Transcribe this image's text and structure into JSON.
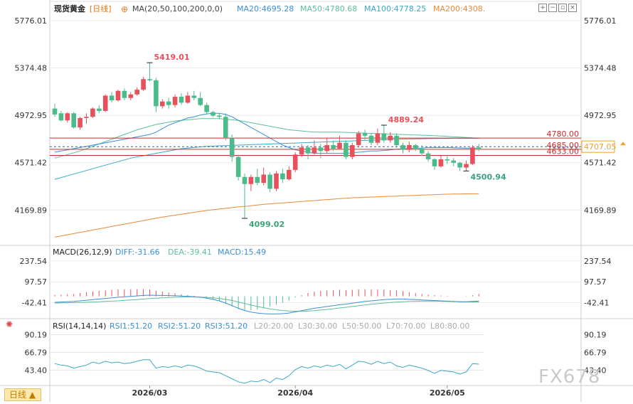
{
  "header": {
    "instrument": "现货黄金",
    "timeframe_tag": "[日线]",
    "ma_label": "MA(20,50,100,200,0,0)",
    "ma20": "MA20:4695.28",
    "ma50": "MA50:4780.68",
    "ma100": "MA100:4778.25",
    "ma200": "MA200:4308.",
    "icons": [
      "plus-circle-icon",
      "grid-plus-icon",
      "grid-minus-icon",
      "window-icon",
      "close-icon"
    ]
  },
  "macd_header": {
    "label": "MACD(26,12,9)",
    "diff": "DIFF:-31.66",
    "dea": "DEA:-39.41",
    "macd": "MACD:15.49"
  },
  "rsi_header": {
    "label": "RSI(14,14,14)",
    "rsi1": "RSI1:51.20",
    "rsi2": "RSI2:51.20",
    "rsi3": "RSI3:51.20",
    "l20": "L20:20.00",
    "l30": "L30:30.00",
    "l50": "L50:50.00",
    "l70": "L70:70.00",
    "l80": "L80:80.00"
  },
  "timeframe_button": "日线 ▲",
  "watermark": "FX678",
  "colors": {
    "up": "#e8505b",
    "down": "#4cbb8a",
    "ma20": "#3a8fd6",
    "ma50": "#5cbf9a",
    "ma100": "#3aa9c9",
    "ma200": "#e88a3a",
    "hline": "#cc2b2b",
    "current": "#f0a030"
  },
  "chart_data": [
    {
      "type": "candlestick",
      "name": "price",
      "y_ticks": [
        "5776.01",
        "5374.48",
        "4972.95",
        "4571.42",
        "4169.89"
      ],
      "ylim": [
        3900,
        5830
      ],
      "x_ticks": [
        "2026/03",
        "2026/04",
        "2026/05"
      ],
      "candles": [
        [
          5030,
          4980,
          5070,
          4960
        ],
        [
          4990,
          4930,
          5010,
          4920
        ],
        [
          4930,
          4990,
          5000,
          4910
        ],
        [
          4990,
          4870,
          5000,
          4860
        ],
        [
          4870,
          4950,
          4960,
          4850
        ],
        [
          4950,
          4960,
          4990,
          4900
        ],
        [
          4960,
          5030,
          5040,
          4950
        ],
        [
          5030,
          5010,
          5060,
          4990
        ],
        [
          5010,
          5140,
          5150,
          5000
        ],
        [
          5140,
          5100,
          5170,
          5080
        ],
        [
          5100,
          5180,
          5190,
          5090
        ],
        [
          5180,
          5120,
          5200,
          5100
        ],
        [
          5120,
          5150,
          5170,
          5100
        ],
        [
          5150,
          5190,
          5210,
          5140
        ],
        [
          5190,
          5280,
          5300,
          5180
        ],
        [
          5280,
          5270,
          5419,
          5260
        ],
        [
          5270,
          5050,
          5290,
          5000
        ],
        [
          5050,
          5090,
          5110,
          5030
        ],
        [
          5090,
          5060,
          5120,
          5030
        ],
        [
          5060,
          5130,
          5150,
          5040
        ],
        [
          5130,
          5080,
          5160,
          5060
        ],
        [
          5080,
          5140,
          5170,
          5070
        ],
        [
          5140,
          5120,
          5180,
          5100
        ],
        [
          5120,
          5060,
          5170,
          5050
        ],
        [
          5060,
          5000,
          5080,
          4980
        ],
        [
          5000,
          4970,
          5010,
          4960
        ],
        [
          4970,
          4960,
          4990,
          4940
        ],
        [
          4960,
          4780,
          4990,
          4760
        ],
        [
          4780,
          4620,
          4810,
          4580
        ],
        [
          4620,
          4450,
          4640,
          4420
        ],
        [
          4450,
          4390,
          4480,
          4099
        ],
        [
          4390,
          4450,
          4470,
          4330
        ],
        [
          4450,
          4400,
          4520,
          4380
        ],
        [
          4400,
          4470,
          4530,
          4380
        ],
        [
          4470,
          4350,
          4490,
          4320
        ],
        [
          4350,
          4480,
          4500,
          4330
        ],
        [
          4480,
          4430,
          4520,
          4400
        ],
        [
          4430,
          4510,
          4540,
          4420
        ],
        [
          4510,
          4640,
          4660,
          4490
        ],
        [
          4640,
          4700,
          4730,
          4620
        ],
        [
          4700,
          4650,
          4720,
          4600
        ],
        [
          4650,
          4700,
          4760,
          4640
        ],
        [
          4700,
          4670,
          4730,
          4610
        ],
        [
          4670,
          4720,
          4780,
          4650
        ],
        [
          4720,
          4690,
          4760,
          4670
        ],
        [
          4690,
          4740,
          4800,
          4680
        ],
        [
          4740,
          4620,
          4760,
          4600
        ],
        [
          4620,
          4720,
          4740,
          4600
        ],
        [
          4720,
          4820,
          4840,
          4700
        ],
        [
          4820,
          4800,
          4850,
          4760
        ],
        [
          4800,
          4740,
          4820,
          4720
        ],
        [
          4740,
          4820,
          4860,
          4720
        ],
        [
          4820,
          4760,
          4889,
          4740
        ],
        [
          4760,
          4800,
          4830,
          4740
        ],
        [
          4800,
          4720,
          4820,
          4700
        ],
        [
          4720,
          4680,
          4740,
          4650
        ],
        [
          4680,
          4720,
          4750,
          4660
        ],
        [
          4720,
          4690,
          4730,
          4670
        ],
        [
          4690,
          4650,
          4720,
          4630
        ],
        [
          4650,
          4600,
          4670,
          4580
        ],
        [
          4600,
          4540,
          4610,
          4510
        ],
        [
          4540,
          4600,
          4630,
          4530
        ],
        [
          4600,
          4590,
          4640,
          4560
        ],
        [
          4590,
          4570,
          4610,
          4540
        ],
        [
          4570,
          4530,
          4580,
          4500
        ],
        [
          4530,
          4560,
          4590,
          4500.94
        ],
        [
          4560,
          4700,
          4720,
          4550
        ],
        [
          4700,
          4690,
          4730,
          4670
        ]
      ],
      "ma20": [
        4660,
        4670,
        4680,
        4690,
        4700,
        4710,
        4720,
        4730,
        4740,
        4750,
        4760,
        4770,
        4780,
        4790,
        4800,
        4810,
        4830,
        4860,
        4890,
        4910,
        4930,
        4950,
        4960,
        4975,
        4985,
        4990,
        4990,
        4980,
        4960,
        4930,
        4900,
        4870,
        4840,
        4810,
        4780,
        4750,
        4720,
        4700,
        4680,
        4670,
        4660,
        4650,
        4650,
        4650,
        4650,
        4650,
        4650,
        4655,
        4660,
        4665,
        4670,
        4670,
        4675,
        4680,
        4685,
        4690,
        4690,
        4695,
        4695,
        4700,
        4700,
        4700,
        4700,
        4698,
        4696,
        4695,
        4695,
        4695
      ],
      "ma50": [
        4610,
        4625,
        4640,
        4655,
        4670,
        4690,
        4710,
        4730,
        4750,
        4770,
        4790,
        4810,
        4830,
        4850,
        4865,
        4880,
        4895,
        4905,
        4915,
        4925,
        4930,
        4935,
        4940,
        4945,
        4945,
        4945,
        4945,
        4940,
        4935,
        4930,
        4920,
        4910,
        4900,
        4890,
        4880,
        4870,
        4860,
        4850,
        4845,
        4840,
        4835,
        4830,
        4830,
        4830,
        4830,
        4830,
        4828,
        4826,
        4824,
        4822,
        4820,
        4818,
        4816,
        4814,
        4812,
        4810,
        4808,
        4806,
        4804,
        4802,
        4800,
        4797,
        4794,
        4791,
        4788,
        4785,
        4782,
        4780
      ],
      "ma100": [
        4430,
        4445,
        4460,
        4475,
        4490,
        4505,
        4520,
        4535,
        4550,
        4565,
        4580,
        4595,
        4610,
        4620,
        4630,
        4640,
        4650,
        4660,
        4670,
        4680,
        4690,
        4695,
        4700,
        4705,
        4710,
        4712,
        4714,
        4716,
        4718,
        4720,
        4722,
        4724,
        4726,
        4728,
        4730,
        4732,
        4734,
        4736,
        4738,
        4740,
        4742,
        4744,
        4746,
        4748,
        4750,
        4752,
        4754,
        4756,
        4758,
        4760,
        4762,
        4764,
        4766,
        4768,
        4770,
        4771,
        4772,
        4773,
        4774,
        4775,
        4776,
        4777,
        4777,
        4778,
        4778,
        4778,
        4778,
        4778
      ],
      "ma200": [
        3940,
        3950,
        3960,
        3970,
        3980,
        3990,
        4000,
        4010,
        4020,
        4030,
        4040,
        4050,
        4060,
        4070,
        4080,
        4090,
        4100,
        4110,
        4118,
        4126,
        4134,
        4142,
        4150,
        4158,
        4166,
        4172,
        4178,
        4184,
        4190,
        4196,
        4200,
        4206,
        4212,
        4218,
        4222,
        4226,
        4230,
        4234,
        4238,
        4242,
        4246,
        4250,
        4254,
        4258,
        4262,
        4266,
        4270,
        4274,
        4276,
        4278,
        4280,
        4282,
        4284,
        4286,
        4288,
        4290,
        4292,
        4294,
        4296,
        4298,
        4300,
        4302,
        4304,
        4305,
        4306,
        4307,
        4308,
        4308
      ],
      "h_lines": [
        {
          "value": 4780.0,
          "label": "4780.00"
        },
        {
          "value": 4685.0,
          "label": "4685.00"
        },
        {
          "value": 4633.0,
          "label": "4633.00"
        }
      ],
      "current": {
        "value": 4707.05,
        "label": "4707.05"
      },
      "annotations": [
        {
          "label": "5419.01",
          "index": 15,
          "value": 5419.01
        },
        {
          "label": "4889.24",
          "index": 52,
          "value": 4889.24
        },
        {
          "label": "4099.02",
          "index": 30,
          "value": 4099.02
        },
        {
          "label": "4500.94",
          "index": 65,
          "value": 4500.94
        }
      ]
    },
    {
      "type": "bar",
      "name": "macd",
      "y_ticks": [
        "237.54",
        "97.57",
        "-42.41"
      ],
      "ylim": [
        -140,
        280
      ],
      "diff": [
        -40,
        -38,
        -36,
        -34,
        -30,
        -26,
        -22,
        -18,
        -14,
        -10,
        -6,
        -3,
        0,
        3,
        6,
        8,
        7,
        6,
        5,
        4,
        2,
        0,
        -2,
        -6,
        -12,
        -20,
        -30,
        -45,
        -62,
        -80,
        -95,
        -105,
        -112,
        -116,
        -118,
        -118,
        -116,
        -112,
        -104,
        -96,
        -88,
        -80,
        -74,
        -68,
        -62,
        -56,
        -52,
        -46,
        -40,
        -34,
        -30,
        -26,
        -22,
        -20,
        -18,
        -18,
        -20,
        -22,
        -24,
        -26,
        -28,
        -30,
        -32,
        -34,
        -36,
        -36,
        -34,
        -32
      ],
      "dea": [
        -45,
        -44,
        -43,
        -42,
        -41,
        -40,
        -38,
        -36,
        -34,
        -32,
        -30,
        -27,
        -24,
        -21,
        -18,
        -15,
        -12,
        -10,
        -8,
        -6,
        -5,
        -4,
        -4,
        -5,
        -7,
        -10,
        -14,
        -20,
        -28,
        -38,
        -48,
        -58,
        -68,
        -76,
        -84,
        -90,
        -95,
        -98,
        -100,
        -100,
        -99,
        -96,
        -92,
        -88,
        -83,
        -78,
        -73,
        -68,
        -63,
        -58,
        -53,
        -49,
        -45,
        -41,
        -38,
        -36,
        -34,
        -33,
        -32,
        -32,
        -32,
        -33,
        -34,
        -35,
        -36,
        -37,
        -38,
        -39
      ],
      "hist": [
        10,
        12,
        14,
        16,
        22,
        28,
        32,
        36,
        40,
        44,
        48,
        48,
        48,
        48,
        48,
        46,
        38,
        32,
        26,
        20,
        14,
        8,
        4,
        -2,
        -10,
        -20,
        -32,
        -50,
        -68,
        -84,
        -94,
        -94,
        -88,
        -80,
        -68,
        -56,
        -42,
        -28,
        -8,
        8,
        22,
        32,
        36,
        40,
        42,
        44,
        42,
        44,
        46,
        48,
        46,
        46,
        46,
        42,
        40,
        36,
        28,
        22,
        16,
        12,
        8,
        6,
        4,
        2,
        0,
        2,
        8,
        15.49
      ]
    },
    {
      "type": "line",
      "name": "rsi",
      "y_ticks": [
        "90.19",
        "66.79",
        "43.40"
      ],
      "ylim": [
        25,
        98
      ],
      "rsi": [
        52,
        50,
        49,
        46,
        48,
        50,
        54,
        52,
        55,
        53,
        54,
        52,
        53,
        55,
        57,
        57,
        46,
        48,
        47,
        49,
        47,
        50,
        49,
        46,
        42,
        41,
        40,
        36,
        32,
        28,
        26,
        29,
        28,
        31,
        27,
        33,
        31,
        36,
        44,
        48,
        46,
        49,
        47,
        50,
        48,
        51,
        45,
        50,
        55,
        54,
        51,
        55,
        52,
        54,
        49,
        47,
        50,
        48,
        46,
        43,
        39,
        43,
        42,
        41,
        38,
        41,
        52,
        51.2
      ]
    }
  ]
}
